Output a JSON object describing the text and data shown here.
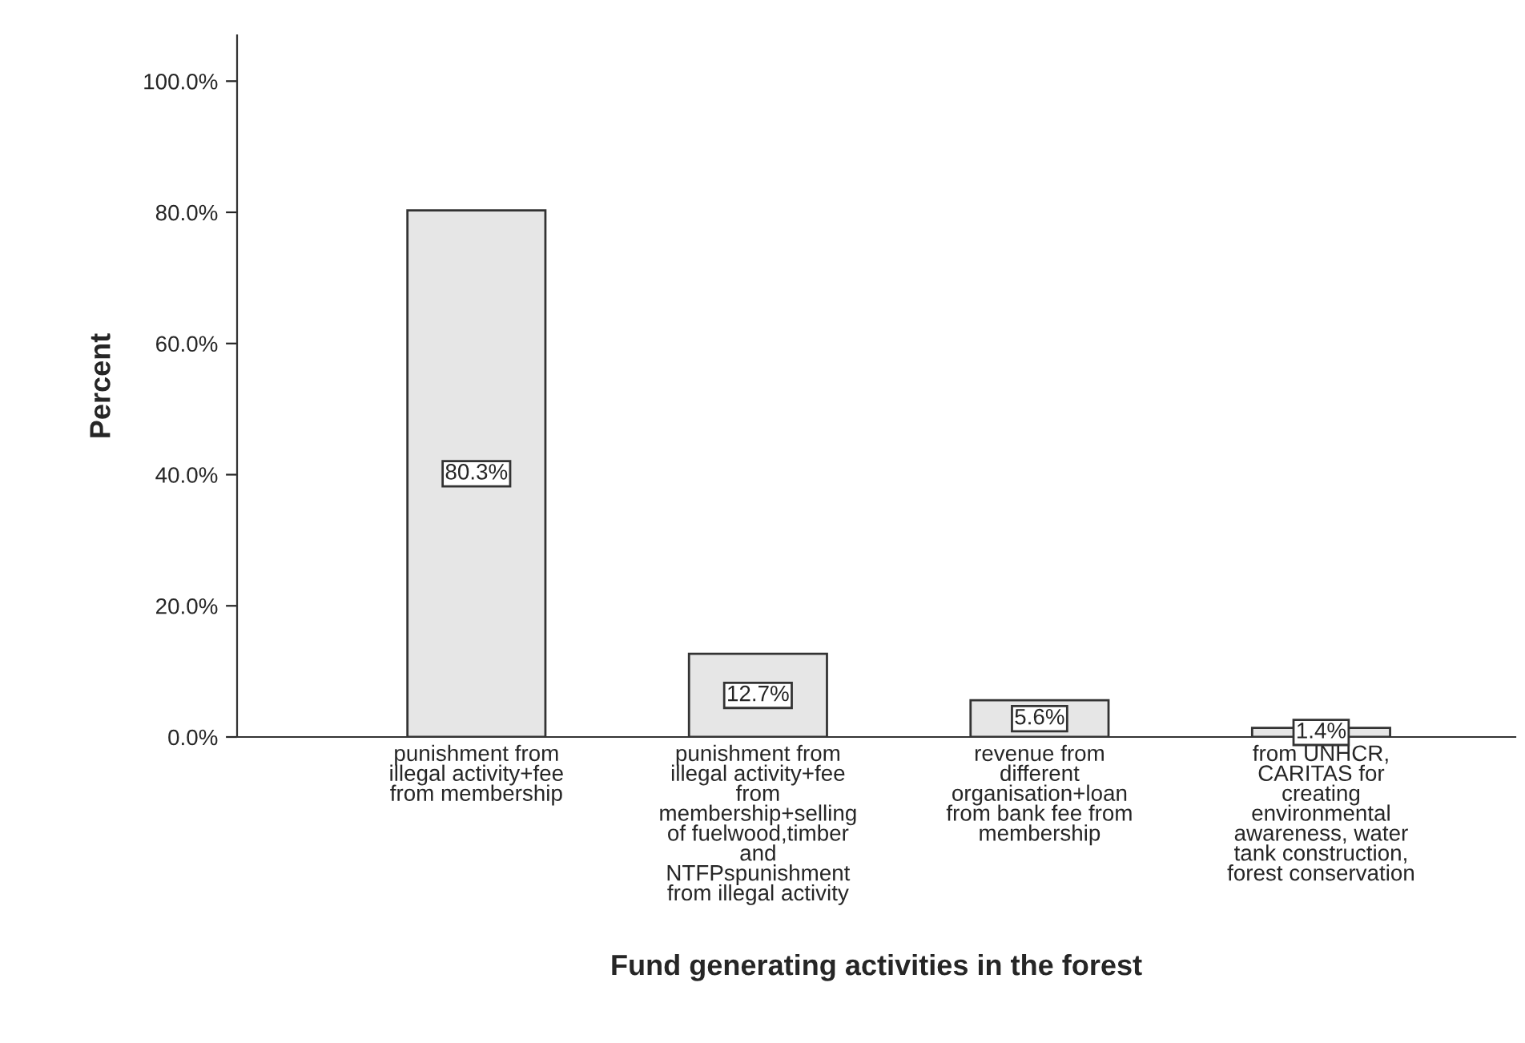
{
  "chart_data": {
    "type": "bar",
    "categories": [
      "punishment from\nillegal activity+fee\nfrom membership",
      "punishment from\nillegal activity+fee\nfrom\nmembership+selling\nof fuelwood,timber\nand\nNTFPspunishment\nfrom illegal activity",
      "revenue from\ndifferent\norganisation+loan\nfrom bank fee from\nmembership",
      "from UNHCR,\nCARITAS for\ncreating\nenvironmental\nawareness, water\ntank construction,\nforest conservation"
    ],
    "values": [
      80.3,
      12.7,
      5.6,
      1.4
    ],
    "value_labels": [
      "80.3%",
      "12.7%",
      "5.6%",
      "1.4%"
    ],
    "color": "#e6e6e6",
    "xlabel": "Fund generating activities in the forest",
    "ylabel": "Percent",
    "ylim": [
      0,
      107
    ],
    "yticks": [
      {
        "value": 0,
        "label": "0.0%"
      },
      {
        "value": 20,
        "label": "20.0%"
      },
      {
        "value": 40,
        "label": "40.0%"
      },
      {
        "value": 60,
        "label": "60.0%"
      },
      {
        "value": 80,
        "label": "80.0%"
      },
      {
        "value": 100,
        "label": "100.0%"
      }
    ],
    "grid": false,
    "legend": false
  }
}
